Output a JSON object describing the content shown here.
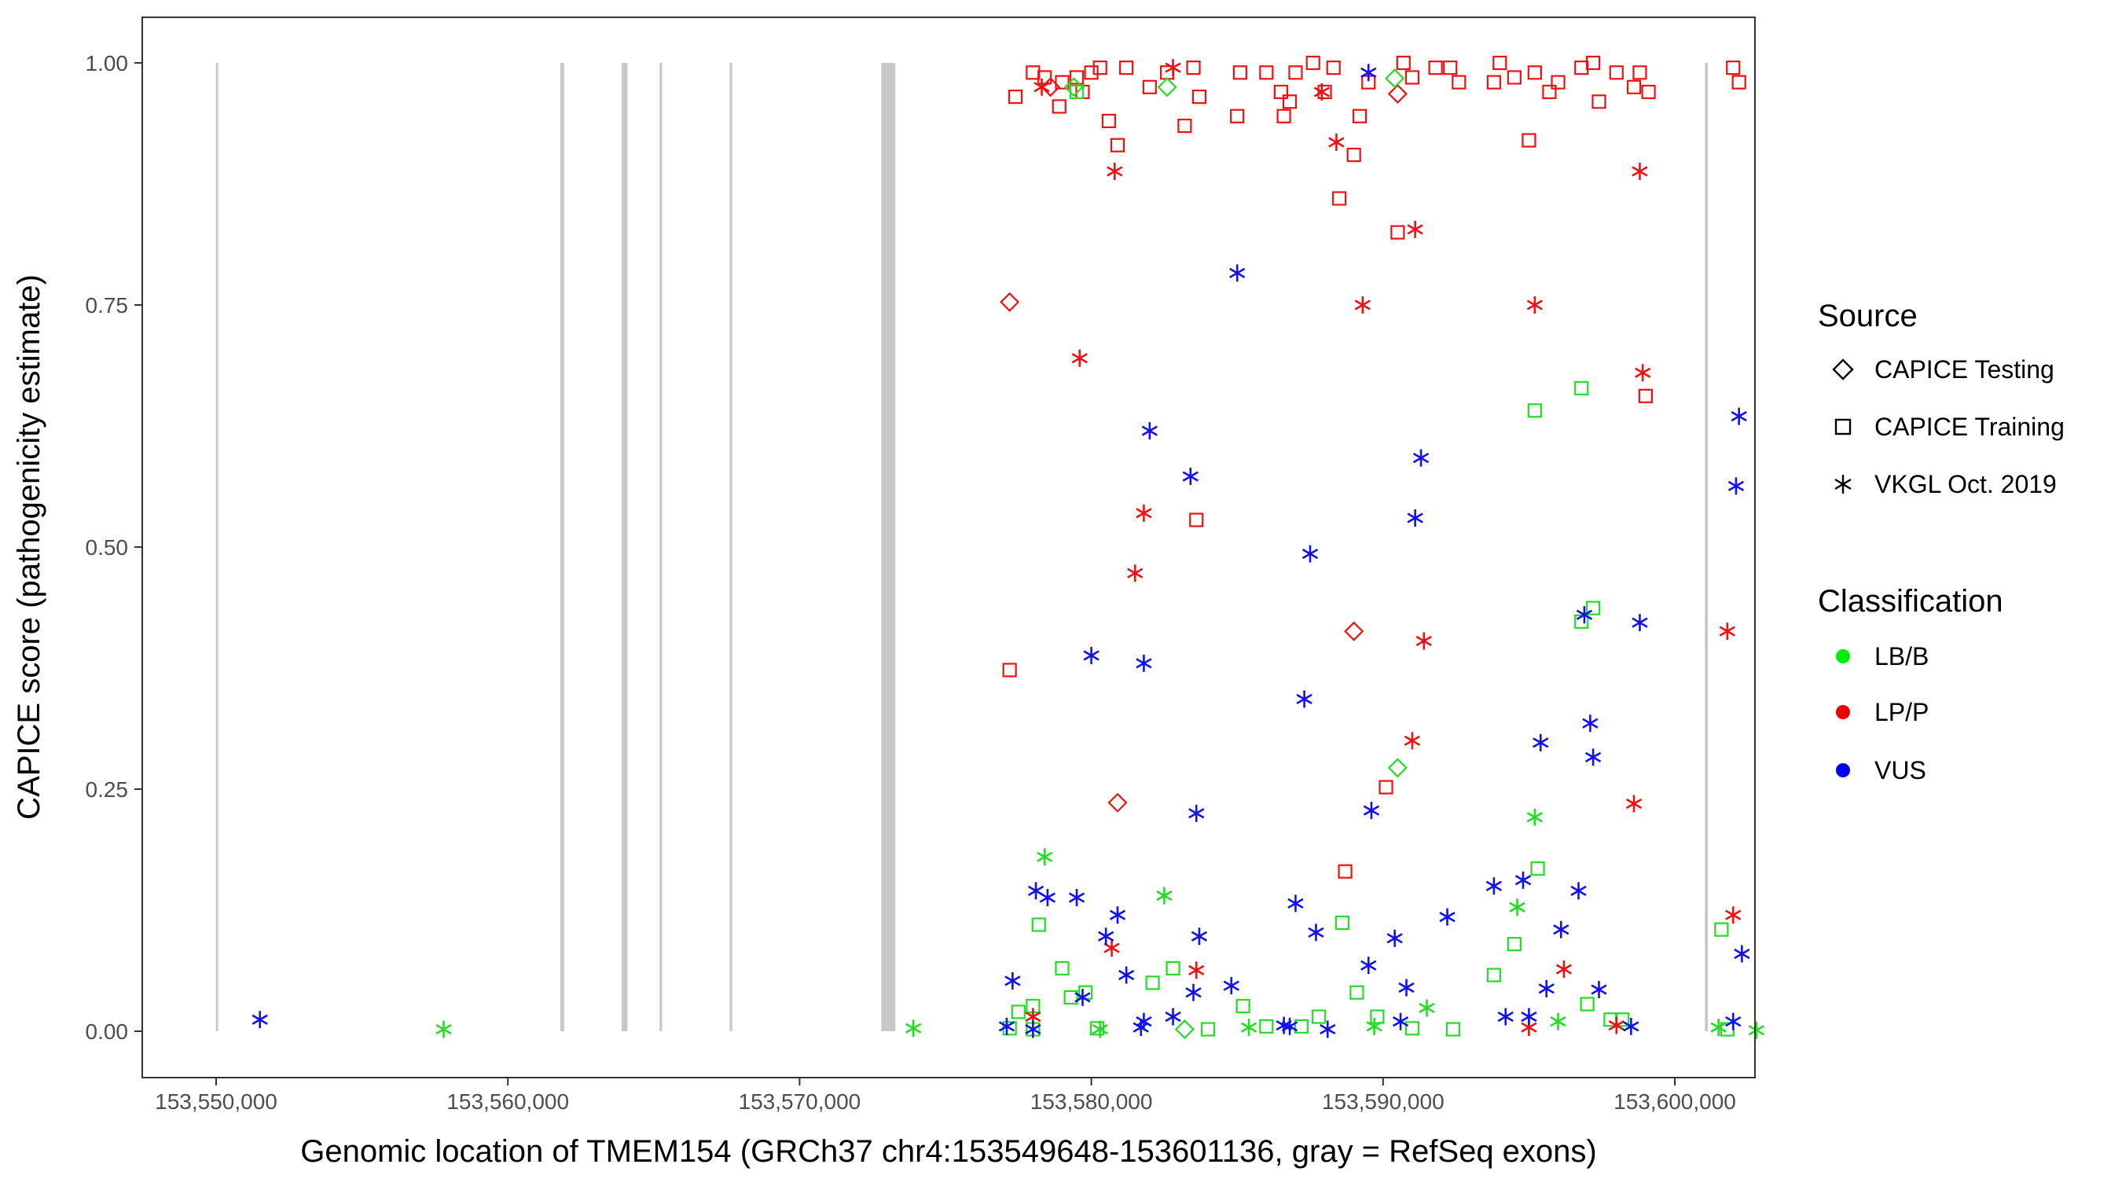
{
  "chart_data": {
    "type": "scatter",
    "title": "",
    "xlabel": "Genomic location of TMEM154 (GRCh37 chr4:153549648-153601136, gray = RefSeq exons)",
    "ylabel": "CAPICE score (pathogenicity estimate)",
    "xlim": [
      153549648,
      153601136
    ],
    "ylim": [
      0,
      1
    ],
    "grid": false,
    "x_ticks": [
      153550000,
      153560000,
      153570000,
      153580000,
      153590000,
      153600000
    ],
    "x_tick_labels": [
      "153,550,000",
      "153,560,000",
      "153,570,000",
      "153,580,000",
      "153,590,000",
      "153,600,000"
    ],
    "y_ticks": [
      0,
      0.25,
      0.5,
      0.75,
      1
    ],
    "y_tick_labels": [
      "0.00",
      "0.25",
      "0.50",
      "0.75",
      "1.00"
    ],
    "exons": [
      {
        "start": 153549990,
        "end": 153550070
      },
      {
        "start": 153561800,
        "end": 153561930
      },
      {
        "start": 153563900,
        "end": 153564100
      },
      {
        "start": 153565200,
        "end": 153565290
      },
      {
        "start": 153567600,
        "end": 153567690
      },
      {
        "start": 153572800,
        "end": 153573280
      },
      {
        "start": 153601030,
        "end": 153601136
      }
    ],
    "legend": {
      "placement": "right",
      "source_title": "Source",
      "source_items": [
        {
          "label": "CAPICE Testing",
          "shape": "diamond"
        },
        {
          "label": "CAPICE Training",
          "shape": "square"
        },
        {
          "label": "VKGL Oct. 2019",
          "shape": "asterisk"
        }
      ],
      "class_title": "Classification",
      "class_items": [
        {
          "label": "LB/B",
          "color": "#00ee00"
        },
        {
          "label": "LP/P",
          "color": "#ee0000"
        },
        {
          "label": "VUS",
          "color": "#0000ee"
        }
      ]
    },
    "colors": {
      "LB/B": "#22dd22",
      "LP/P": "#ee1111",
      "VUS": "#1111ee"
    },
    "series": [
      {
        "name": "LP/P CAPICE Training",
        "class": "LP/P",
        "source": "CAPICE Training",
        "points": [
          [
            153577400,
            0.965
          ],
          [
            153578000,
            0.99
          ],
          [
            153578400,
            0.985
          ],
          [
            153578900,
            0.955
          ],
          [
            153579000,
            0.98
          ],
          [
            153579500,
            0.985
          ],
          [
            153579700,
            0.97
          ],
          [
            153580000,
            0.99
          ],
          [
            153580300,
            0.995
          ],
          [
            153580600,
            0.94
          ],
          [
            153580900,
            0.915
          ],
          [
            153581200,
            0.995
          ],
          [
            153582000,
            0.975
          ],
          [
            153582600,
            0.99
          ],
          [
            153583200,
            0.935
          ],
          [
            153583500,
            0.995
          ],
          [
            153583700,
            0.965
          ],
          [
            153583600,
            0.528
          ],
          [
            153577200,
            0.373
          ],
          [
            153585000,
            0.945
          ],
          [
            153585100,
            0.99
          ],
          [
            153586000,
            0.99
          ],
          [
            153586500,
            0.97
          ],
          [
            153586600,
            0.945
          ],
          [
            153586800,
            0.96
          ],
          [
            153587000,
            0.99
          ],
          [
            153587600,
            1.0
          ],
          [
            153588000,
            0.97
          ],
          [
            153588300,
            0.995
          ],
          [
            153588500,
            0.86
          ],
          [
            153588700,
            0.165
          ],
          [
            153589000,
            0.905
          ],
          [
            153589200,
            0.945
          ],
          [
            153589500,
            0.98
          ],
          [
            153590500,
            0.825
          ],
          [
            153590700,
            1.0
          ],
          [
            153591000,
            0.985
          ],
          [
            153591800,
            0.995
          ],
          [
            153592300,
            0.995
          ],
          [
            153592600,
            0.98
          ],
          [
            153593800,
            0.98
          ],
          [
            153594000,
            1.0
          ],
          [
            153594500,
            0.985
          ],
          [
            153595000,
            0.92
          ],
          [
            153595200,
            0.99
          ],
          [
            153595700,
            0.97
          ],
          [
            153596000,
            0.98
          ],
          [
            153596800,
            0.995
          ],
          [
            153597200,
            1.0
          ],
          [
            153597400,
            0.96
          ],
          [
            153598000,
            0.99
          ],
          [
            153598600,
            0.975
          ],
          [
            153598800,
            0.99
          ],
          [
            153599100,
            0.97
          ],
          [
            153599000,
            0.656
          ],
          [
            153590100,
            0.252
          ],
          [
            153602000,
            0.995
          ],
          [
            153602200,
            0.98
          ]
        ]
      },
      {
        "name": "LP/P CAPICE Testing",
        "class": "LP/P",
        "source": "CAPICE Testing",
        "points": [
          [
            153577200,
            0.753
          ],
          [
            153580900,
            0.236
          ],
          [
            153589000,
            0.413
          ],
          [
            153590500,
            0.968
          ],
          [
            153578600,
            0.975
          ]
        ]
      },
      {
        "name": "LP/P VKGL Oct. 2019",
        "class": "LP/P",
        "source": "VKGL Oct. 2019",
        "points": [
          [
            153578300,
            0.975
          ],
          [
            153580800,
            0.888
          ],
          [
            153582800,
            0.995
          ],
          [
            153587900,
            0.97
          ],
          [
            153588400,
            0.918
          ],
          [
            153589300,
            0.75
          ],
          [
            153591100,
            0.828
          ],
          [
            153595200,
            0.75
          ],
          [
            153598800,
            0.888
          ],
          [
            153598900,
            0.68
          ],
          [
            153579600,
            0.695
          ],
          [
            153581800,
            0.535
          ],
          [
            153581500,
            0.473
          ],
          [
            153591400,
            0.403
          ],
          [
            153591000,
            0.3
          ],
          [
            153598600,
            0.235
          ],
          [
            153601800,
            0.413
          ],
          [
            153602000,
            0.12
          ],
          [
            153580700,
            0.086
          ],
          [
            153583600,
            0.063
          ],
          [
            153578000,
            0.015
          ],
          [
            153596200,
            0.064
          ],
          [
            153598000,
            0.006
          ],
          [
            153595000,
            0.004
          ]
        ]
      },
      {
        "name": "LB/B CAPICE Training",
        "class": "LB/B",
        "source": "CAPICE Training",
        "points": [
          [
            153577200,
            0.003
          ],
          [
            153577500,
            0.02
          ],
          [
            153578000,
            0.026
          ],
          [
            153578200,
            0.11
          ],
          [
            153579000,
            0.065
          ],
          [
            153579300,
            0.035
          ],
          [
            153579800,
            0.04
          ],
          [
            153580200,
            0.003
          ],
          [
            153582100,
            0.05
          ],
          [
            153582800,
            0.065
          ],
          [
            153584000,
            0.002
          ],
          [
            153585200,
            0.026
          ],
          [
            153586000,
            0.005
          ],
          [
            153587200,
            0.005
          ],
          [
            153587800,
            0.015
          ],
          [
            153588600,
            0.112
          ],
          [
            153589100,
            0.04
          ],
          [
            153589800,
            0.015
          ],
          [
            153591000,
            0.003
          ],
          [
            153592400,
            0.002
          ],
          [
            153593800,
            0.058
          ],
          [
            153594500,
            0.09
          ],
          [
            153595200,
            0.641
          ],
          [
            153595300,
            0.168
          ],
          [
            153596800,
            0.664
          ],
          [
            153597200,
            0.437
          ],
          [
            153596800,
            0.423
          ],
          [
            153597000,
            0.028
          ],
          [
            153597800,
            0.012
          ],
          [
            153598200,
            0.012
          ],
          [
            153601600,
            0.105
          ],
          [
            153601800,
            0.002
          ],
          [
            153579500,
            0.97
          ],
          [
            153578000,
            0.002
          ]
        ]
      },
      {
        "name": "LB/B CAPICE Testing",
        "class": "LB/B",
        "source": "CAPICE Testing",
        "points": [
          [
            153579400,
            0.975
          ],
          [
            153582600,
            0.975
          ],
          [
            153590500,
            0.272
          ],
          [
            153590400,
            0.984
          ],
          [
            153583200,
            0.002
          ]
        ]
      },
      {
        "name": "LB/B VKGL Oct. 2019",
        "class": "LB/B",
        "source": "VKGL Oct. 2019",
        "points": [
          [
            153557800,
            0.002
          ],
          [
            153573900,
            0.003
          ],
          [
            153578400,
            0.18
          ],
          [
            153582500,
            0.14
          ],
          [
            153595200,
            0.221
          ],
          [
            153594600,
            0.128
          ],
          [
            153591500,
            0.024
          ],
          [
            153589700,
            0.005
          ],
          [
            153585400,
            0.004
          ],
          [
            153596000,
            0.01
          ],
          [
            153601500,
            0.004
          ],
          [
            153602800,
            0.001
          ],
          [
            153580300,
            0.002
          ]
        ]
      },
      {
        "name": "VUS VKGL Oct. 2019",
        "class": "VUS",
        "source": "VKGL Oct. 2019",
        "points": [
          [
            153551500,
            0.012
          ],
          [
            153577100,
            0.005
          ],
          [
            153577300,
            0.052
          ],
          [
            153578000,
            0.002
          ],
          [
            153578100,
            0.145
          ],
          [
            153578500,
            0.138
          ],
          [
            153579500,
            0.138
          ],
          [
            153579700,
            0.035
          ],
          [
            153580500,
            0.098
          ],
          [
            153580900,
            0.12
          ],
          [
            153581200,
            0.058
          ],
          [
            153581800,
            0.01
          ],
          [
            153580000,
            0.388
          ],
          [
            153582000,
            0.62
          ],
          [
            153581800,
            0.38
          ],
          [
            153582800,
            0.015
          ],
          [
            153583400,
            0.573
          ],
          [
            153583600,
            0.225
          ],
          [
            153583700,
            0.098
          ],
          [
            153583500,
            0.04
          ],
          [
            153581700,
            0.004
          ],
          [
            153585000,
            0.783
          ],
          [
            153584800,
            0.047
          ],
          [
            153586800,
            0.005
          ],
          [
            153587300,
            0.343
          ],
          [
            153587500,
            0.493
          ],
          [
            153587700,
            0.102
          ],
          [
            153587000,
            0.132
          ],
          [
            153588100,
            0.002
          ],
          [
            153589600,
            0.228
          ],
          [
            153589500,
            0.068
          ],
          [
            153590400,
            0.096
          ],
          [
            153590800,
            0.045
          ],
          [
            153590600,
            0.01
          ],
          [
            153591100,
            0.53
          ],
          [
            153591300,
            0.592
          ],
          [
            153592200,
            0.118
          ],
          [
            153593800,
            0.15
          ],
          [
            153594800,
            0.156
          ],
          [
            153595000,
            0.015
          ],
          [
            153595400,
            0.298
          ],
          [
            153595600,
            0.044
          ],
          [
            153596100,
            0.105
          ],
          [
            153596700,
            0.145
          ],
          [
            153596900,
            0.43
          ],
          [
            153597100,
            0.318
          ],
          [
            153597200,
            0.283
          ],
          [
            153597400,
            0.043
          ],
          [
            153598500,
            0.005
          ],
          [
            153598800,
            0.422
          ],
          [
            153594200,
            0.015
          ],
          [
            153589500,
            0.99
          ],
          [
            153602200,
            0.635
          ],
          [
            153602100,
            0.563
          ],
          [
            153602300,
            0.08
          ],
          [
            153602000,
            0.01
          ],
          [
            153586600,
            0.006
          ]
        ]
      }
    ]
  }
}
